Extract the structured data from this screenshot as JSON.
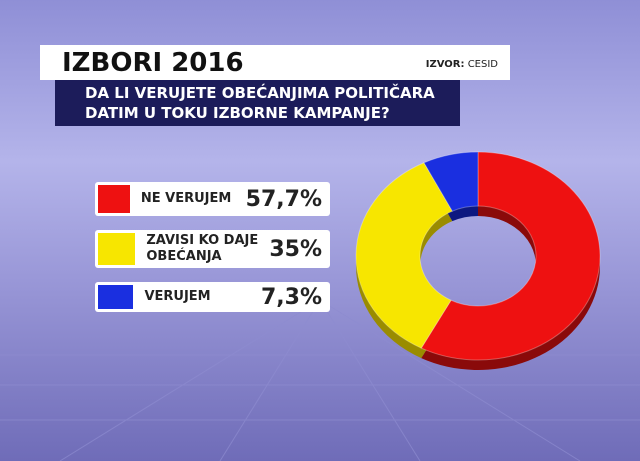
{
  "chart_data": {
    "type": "donut",
    "title": "IZBORI 2016",
    "source_label": "IZVOR:",
    "source": "CESID",
    "subtitle": [
      "DA LI VERUJETE OBEĆANJIMA POLITIČARA",
      "DATIM U TOKU IZBORNE KAMPANJE?"
    ],
    "categories": [
      "NE VERUJEM",
      "ZAVISI KO DAJE OBEĆANJA",
      "VERUJEM"
    ],
    "values": [
      57.7,
      35,
      7.3
    ],
    "value_labels": [
      "57,7%",
      "35%",
      "7,3%"
    ],
    "colors": [
      "#ee1111",
      "#f7e600",
      "#1a2fe0"
    ]
  }
}
